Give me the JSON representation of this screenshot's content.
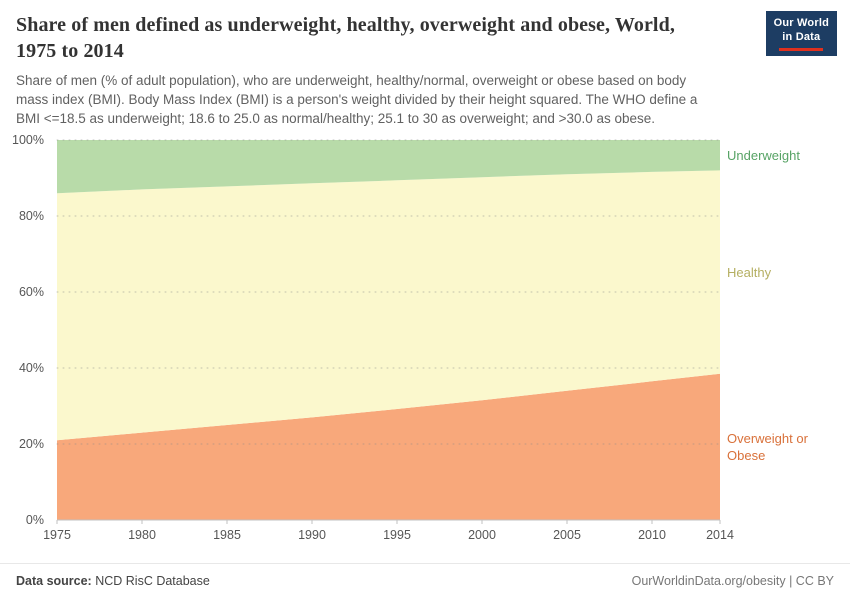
{
  "header": {
    "title": "Share of men defined as underweight, healthy, overweight and obese, World, 1975 to 2014",
    "subtitle": "Share of men (% of adult population), who are underweight, healthy/normal, overweight or obese based on body mass index (BMI). Body Mass Index (BMI) is a person's weight divided by their height squared. The WHO define a BMI <=18.5 as underweight; 18.6 to 25.0 as normal/healthy; 25.1 to 30 as overweight; and >30.0 as obese.",
    "logo": {
      "line1": "Our World",
      "line2": "in Data",
      "bg": "#1d3d63",
      "accent": "#e0301e"
    }
  },
  "chart_data": {
    "type": "area",
    "stacked": true,
    "title": "Share of men defined as underweight, healthy, overweight and obese, World, 1975 to 2014",
    "xlabel": "",
    "ylabel": "",
    "x": [
      1975,
      1980,
      1985,
      1990,
      1995,
      2000,
      2005,
      2010,
      2014
    ],
    "series": [
      {
        "name": "Overweight or Obese",
        "values": [
          21.0,
          23.0,
          25.0,
          27.0,
          29.2,
          31.5,
          34.0,
          36.5,
          38.5
        ],
        "fill": "#f8a87b",
        "label_color": "#d9713a"
      },
      {
        "name": "Healthy",
        "values": [
          65.0,
          64.0,
          62.8,
          61.6,
          60.2,
          58.7,
          57.0,
          55.1,
          53.5
        ],
        "fill": "#fbf8cd",
        "label_color": "#b5af62"
      },
      {
        "name": "Underweight",
        "values": [
          14.0,
          13.0,
          12.2,
          11.4,
          10.6,
          9.8,
          9.0,
          8.4,
          8.0
        ],
        "fill": "#b8dba9",
        "label_color": "#57a365"
      }
    ],
    "ylim": [
      0,
      100
    ],
    "yticks": [
      0,
      20,
      40,
      60,
      80,
      100
    ],
    "ytick_suffix": "%",
    "xticks": [
      1975,
      1980,
      1985,
      1990,
      1995,
      2000,
      2005,
      2010,
      2014
    ],
    "grid": "horizontal-dotted",
    "legend_position": "right-of-plot"
  },
  "footer": {
    "source_label": "Data source:",
    "source_value": " NCD RisC Database",
    "right": "OurWorldinData.org/obesity | CC BY"
  }
}
